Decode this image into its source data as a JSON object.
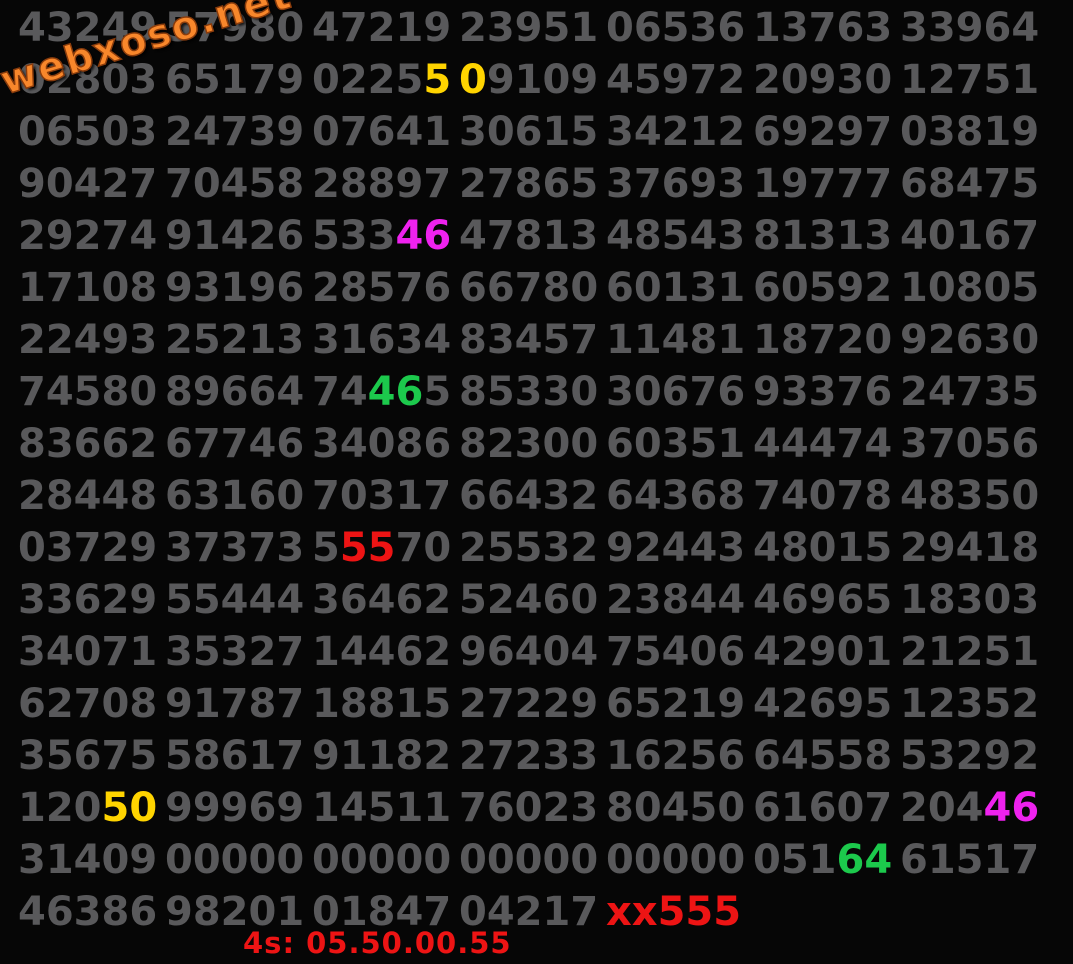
{
  "watermark": {
    "text": "webxoso.net",
    "color": "#f8872b",
    "outline": "#8a3c0c"
  },
  "footer": {
    "label": "4s: 05.50.00.55"
  },
  "colors": {
    "background": "#060606",
    "gray": "#59595b",
    "yellow": "#ffd400",
    "magenta": "#ee22ee",
    "green": "#1cc94c",
    "red": "#ed1414"
  },
  "grid": {
    "columns": 7,
    "rows": [
      [
        [
          {
            "t": "43249"
          }
        ],
        [
          {
            "t": "57980"
          }
        ],
        [
          {
            "t": "47219"
          }
        ],
        [
          {
            "t": "23951"
          }
        ],
        [
          {
            "t": "06536"
          }
        ],
        [
          {
            "t": "13763"
          }
        ],
        [
          {
            "t": "33964"
          }
        ]
      ],
      [
        [
          {
            "t": "02803"
          }
        ],
        [
          {
            "t": "65179"
          }
        ],
        [
          {
            "t": "0225"
          },
          {
            "t": "5",
            "c": "yellow"
          }
        ],
        [
          {
            "t": "0",
            "c": "yellow"
          },
          {
            "t": "9109"
          }
        ],
        [
          {
            "t": "45972"
          }
        ],
        [
          {
            "t": "20930"
          }
        ],
        [
          {
            "t": "12751"
          }
        ]
      ],
      [
        [
          {
            "t": "06503"
          }
        ],
        [
          {
            "t": "24739"
          }
        ],
        [
          {
            "t": "07641"
          }
        ],
        [
          {
            "t": "30615"
          }
        ],
        [
          {
            "t": "34212"
          }
        ],
        [
          {
            "t": "69297"
          }
        ],
        [
          {
            "t": "03819"
          }
        ]
      ],
      [
        [
          {
            "t": "90427"
          }
        ],
        [
          {
            "t": "70458"
          }
        ],
        [
          {
            "t": "28897"
          }
        ],
        [
          {
            "t": "27865"
          }
        ],
        [
          {
            "t": "37693"
          }
        ],
        [
          {
            "t": "19777"
          }
        ],
        [
          {
            "t": "68475"
          }
        ]
      ],
      [
        [
          {
            "t": "29274"
          }
        ],
        [
          {
            "t": "91426"
          }
        ],
        [
          {
            "t": "533"
          },
          {
            "t": "46",
            "c": "magenta"
          }
        ],
        [
          {
            "t": "47813"
          }
        ],
        [
          {
            "t": "48543"
          }
        ],
        [
          {
            "t": "81313"
          }
        ],
        [
          {
            "t": "40167"
          }
        ]
      ],
      [
        [
          {
            "t": "17108"
          }
        ],
        [
          {
            "t": "93196"
          }
        ],
        [
          {
            "t": "28576"
          }
        ],
        [
          {
            "t": "66780"
          }
        ],
        [
          {
            "t": "60131"
          }
        ],
        [
          {
            "t": "60592"
          }
        ],
        [
          {
            "t": "10805"
          }
        ]
      ],
      [
        [
          {
            "t": "22493"
          }
        ],
        [
          {
            "t": "25213"
          }
        ],
        [
          {
            "t": "31634"
          }
        ],
        [
          {
            "t": "83457"
          }
        ],
        [
          {
            "t": "11481"
          }
        ],
        [
          {
            "t": "18720"
          }
        ],
        [
          {
            "t": "92630"
          }
        ]
      ],
      [
        [
          {
            "t": "74580"
          }
        ],
        [
          {
            "t": "89664"
          }
        ],
        [
          {
            "t": "74"
          },
          {
            "t": "46",
            "c": "green"
          },
          {
            "t": "5"
          }
        ],
        [
          {
            "t": "85330"
          }
        ],
        [
          {
            "t": "30676"
          }
        ],
        [
          {
            "t": "93376"
          }
        ],
        [
          {
            "t": "24735"
          }
        ]
      ],
      [
        [
          {
            "t": "83662"
          }
        ],
        [
          {
            "t": "67746"
          }
        ],
        [
          {
            "t": "34086"
          }
        ],
        [
          {
            "t": "82300"
          }
        ],
        [
          {
            "t": "60351"
          }
        ],
        [
          {
            "t": "44474"
          }
        ],
        [
          {
            "t": "37056"
          }
        ]
      ],
      [
        [
          {
            "t": "28448"
          }
        ],
        [
          {
            "t": "63160"
          }
        ],
        [
          {
            "t": "70317"
          }
        ],
        [
          {
            "t": "66432"
          }
        ],
        [
          {
            "t": "64368"
          }
        ],
        [
          {
            "t": "74078"
          }
        ],
        [
          {
            "t": "48350"
          }
        ]
      ],
      [
        [
          {
            "t": "03729"
          }
        ],
        [
          {
            "t": "37373"
          }
        ],
        [
          {
            "t": "5"
          },
          {
            "t": "55",
            "c": "red"
          },
          {
            "t": "70"
          }
        ],
        [
          {
            "t": "25532"
          }
        ],
        [
          {
            "t": "92443"
          }
        ],
        [
          {
            "t": "48015"
          }
        ],
        [
          {
            "t": "29418"
          }
        ]
      ],
      [
        [
          {
            "t": "33629"
          }
        ],
        [
          {
            "t": "55444"
          }
        ],
        [
          {
            "t": "36462"
          }
        ],
        [
          {
            "t": "52460"
          }
        ],
        [
          {
            "t": "23844"
          }
        ],
        [
          {
            "t": "46965"
          }
        ],
        [
          {
            "t": "18303"
          }
        ]
      ],
      [
        [
          {
            "t": "34071"
          }
        ],
        [
          {
            "t": "35327"
          }
        ],
        [
          {
            "t": "14462"
          }
        ],
        [
          {
            "t": "96404"
          }
        ],
        [
          {
            "t": "75406"
          }
        ],
        [
          {
            "t": "42901"
          }
        ],
        [
          {
            "t": "21251"
          }
        ]
      ],
      [
        [
          {
            "t": "62708"
          }
        ],
        [
          {
            "t": "91787"
          }
        ],
        [
          {
            "t": "18815"
          }
        ],
        [
          {
            "t": "27229"
          }
        ],
        [
          {
            "t": "65219"
          }
        ],
        [
          {
            "t": "42695"
          }
        ],
        [
          {
            "t": "12352"
          }
        ]
      ],
      [
        [
          {
            "t": "35675"
          }
        ],
        [
          {
            "t": "58617"
          }
        ],
        [
          {
            "t": "91182"
          }
        ],
        [
          {
            "t": "27233"
          }
        ],
        [
          {
            "t": "16256"
          }
        ],
        [
          {
            "t": "64558"
          }
        ],
        [
          {
            "t": "53292"
          }
        ]
      ],
      [
        [
          {
            "t": "120"
          },
          {
            "t": "50",
            "c": "yellow"
          }
        ],
        [
          {
            "t": "99969"
          }
        ],
        [
          {
            "t": "14511"
          }
        ],
        [
          {
            "t": "76023"
          }
        ],
        [
          {
            "t": "80450"
          }
        ],
        [
          {
            "t": "61607"
          }
        ],
        [
          {
            "t": "204"
          },
          {
            "t": "46",
            "c": "magenta"
          }
        ]
      ],
      [
        [
          {
            "t": "31409"
          }
        ],
        [
          {
            "t": "00000"
          }
        ],
        [
          {
            "t": "00000"
          }
        ],
        [
          {
            "t": "00000"
          }
        ],
        [
          {
            "t": "00000"
          }
        ],
        [
          {
            "t": "051"
          },
          {
            "t": "64",
            "c": "green"
          }
        ],
        [
          {
            "t": "61517"
          }
        ]
      ],
      [
        [
          {
            "t": "46386"
          }
        ],
        [
          {
            "t": "98201"
          }
        ],
        [
          {
            "t": "01847"
          }
        ],
        [
          {
            "t": "04217"
          }
        ],
        [
          {
            "t": "xx555",
            "c": "red"
          }
        ],
        [],
        []
      ]
    ]
  }
}
